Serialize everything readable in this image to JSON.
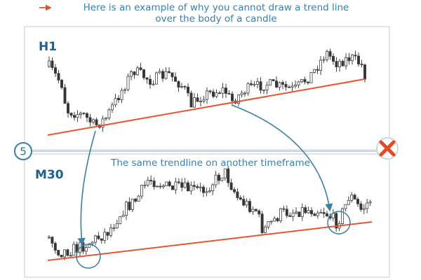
{
  "title": {
    "lines": [
      "Here is an example of why you cannot draw a trend line",
      "over the body of a candle"
    ]
  },
  "panels": [
    {
      "label": "H1"
    },
    {
      "label": "M30",
      "caption": "The same trendline on another timeframe"
    }
  ],
  "step": "5"
}
